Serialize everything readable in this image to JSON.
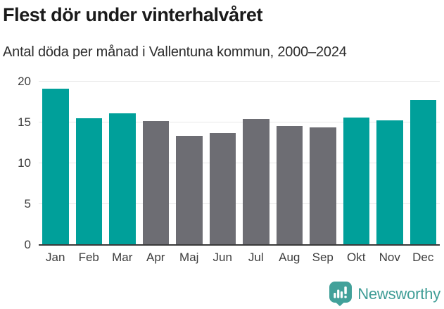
{
  "header": {
    "title": "Flest dör under vinterhalvåret",
    "subtitle": "Antal döda per månad i Vallentuna kommun, 2000–2024"
  },
  "chart_data": {
    "type": "bar",
    "title": "Flest dör under vinterhalvåret",
    "subtitle": "Antal döda per månad i Vallentuna kommun, 2000–2024",
    "categories": [
      "Jan",
      "Feb",
      "Mar",
      "Apr",
      "Maj",
      "Jun",
      "Jul",
      "Aug",
      "Sep",
      "Okt",
      "Nov",
      "Dec"
    ],
    "values": [
      19.1,
      15.5,
      16.1,
      15.2,
      13.4,
      13.7,
      15.4,
      14.6,
      14.4,
      15.6,
      15.3,
      17.8
    ],
    "bar_groups": [
      "winter",
      "winter",
      "winter",
      "summer",
      "summer",
      "summer",
      "summer",
      "summer",
      "summer",
      "winter",
      "winter",
      "winter"
    ],
    "group_colors": {
      "winter": "#00a09a",
      "summer": "#6d6d73"
    },
    "xlabel": "",
    "ylabel": "",
    "ylim": [
      0,
      20
    ],
    "yticks": [
      0,
      5,
      10,
      15,
      20
    ],
    "grid": true,
    "legend": false
  },
  "footer": {
    "brand": "Newsworthy",
    "brand_color": "#3f9d96",
    "icon_color": "#42a19a"
  }
}
